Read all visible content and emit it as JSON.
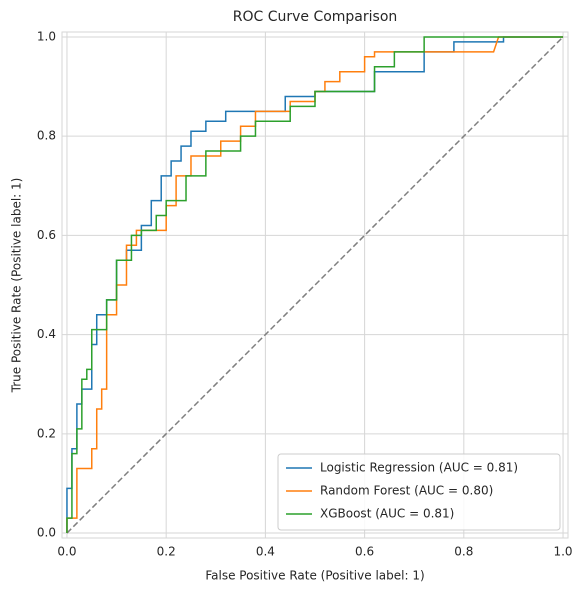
{
  "chart_data": {
    "type": "line",
    "title": "ROC Curve Comparison",
    "xlabel": "False Positive Rate (Positive label: 1)",
    "ylabel": "True Positive Rate (Positive label: 1)",
    "xlim": [
      -0.01,
      1.01
    ],
    "ylim": [
      -0.01,
      1.01
    ],
    "xticks": [
      {
        "value": 0,
        "label": "0.0"
      },
      0.2,
      0.4,
      0.6,
      0.8,
      {
        "value": 1,
        "label": "1.0"
      }
    ],
    "yticks": [
      {
        "value": 0,
        "label": "0.0"
      },
      0.2,
      0.4,
      0.6,
      0.8,
      {
        "value": 1,
        "label": "1.0"
      }
    ],
    "grid": true,
    "legend_position": "lower right",
    "reference_line": {
      "x": [
        0,
        1
      ],
      "values": [
        0,
        1
      ],
      "color": "#7f7f7f"
    },
    "series": [
      {
        "name": "Logistic Regression (AUC = 0.81)",
        "color": "#1f77b4",
        "x": [
          0,
          0,
          0.01,
          0.01,
          0.02,
          0.02,
          0.03,
          0.03,
          0.05,
          0.05,
          0.06,
          0.06,
          0.08,
          0.08,
          0.1,
          0.1,
          0.12,
          0.12,
          0.15,
          0.15,
          0.17,
          0.17,
          0.19,
          0.19,
          0.21,
          0.21,
          0.23,
          0.23,
          0.25,
          0.25,
          0.28,
          0.28,
          0.32,
          0.32,
          0.44,
          0.44,
          0.5,
          0.5,
          0.62,
          0.62,
          0.72,
          0.72,
          0.78,
          0.78,
          0.88,
          0.88,
          1.0
        ],
        "values": [
          0,
          0.09,
          0.09,
          0.17,
          0.17,
          0.26,
          0.26,
          0.29,
          0.29,
          0.38,
          0.38,
          0.44,
          0.44,
          0.47,
          0.47,
          0.55,
          0.55,
          0.57,
          0.57,
          0.62,
          0.62,
          0.67,
          0.67,
          0.72,
          0.72,
          0.75,
          0.75,
          0.78,
          0.78,
          0.81,
          0.81,
          0.83,
          0.83,
          0.85,
          0.85,
          0.88,
          0.88,
          0.89,
          0.89,
          0.93,
          0.93,
          0.97,
          0.97,
          0.99,
          0.99,
          1.0,
          1.0
        ]
      },
      {
        "name": "Random Forest (AUC = 0.80)",
        "color": "#ff7f0e",
        "x": [
          0,
          0,
          0.02,
          0.02,
          0.05,
          0.05,
          0.06,
          0.06,
          0.07,
          0.07,
          0.08,
          0.08,
          0.1,
          0.1,
          0.12,
          0.12,
          0.14,
          0.14,
          0.2,
          0.2,
          0.22,
          0.22,
          0.25,
          0.25,
          0.31,
          0.31,
          0.35,
          0.35,
          0.38,
          0.38,
          0.45,
          0.45,
          0.5,
          0.5,
          0.52,
          0.52,
          0.55,
          0.55,
          0.6,
          0.6,
          0.62,
          0.62,
          0.86,
          0.87,
          1.0
        ],
        "values": [
          0,
          0.03,
          0.03,
          0.13,
          0.13,
          0.17,
          0.17,
          0.25,
          0.25,
          0.29,
          0.29,
          0.44,
          0.44,
          0.5,
          0.5,
          0.58,
          0.58,
          0.61,
          0.61,
          0.66,
          0.66,
          0.72,
          0.72,
          0.76,
          0.76,
          0.79,
          0.79,
          0.82,
          0.82,
          0.85,
          0.85,
          0.87,
          0.87,
          0.89,
          0.89,
          0.91,
          0.91,
          0.93,
          0.93,
          0.96,
          0.96,
          0.97,
          0.97,
          1.0,
          1.0
        ]
      },
      {
        "name": "XGBoost (AUC = 0.81)",
        "color": "#2ca02c",
        "x": [
          0,
          0,
          0.01,
          0.01,
          0.02,
          0.02,
          0.03,
          0.03,
          0.04,
          0.04,
          0.05,
          0.05,
          0.08,
          0.08,
          0.1,
          0.1,
          0.13,
          0.13,
          0.15,
          0.15,
          0.18,
          0.18,
          0.2,
          0.2,
          0.24,
          0.24,
          0.28,
          0.28,
          0.35,
          0.35,
          0.38,
          0.38,
          0.45,
          0.45,
          0.5,
          0.5,
          0.62,
          0.62,
          0.66,
          0.66,
          0.72,
          0.72,
          1.0
        ],
        "values": [
          0,
          0.03,
          0.03,
          0.16,
          0.16,
          0.21,
          0.21,
          0.31,
          0.31,
          0.33,
          0.33,
          0.41,
          0.41,
          0.47,
          0.47,
          0.55,
          0.55,
          0.6,
          0.6,
          0.61,
          0.61,
          0.64,
          0.64,
          0.67,
          0.67,
          0.72,
          0.72,
          0.77,
          0.77,
          0.8,
          0.8,
          0.83,
          0.83,
          0.86,
          0.86,
          0.89,
          0.89,
          0.94,
          0.94,
          0.97,
          0.97,
          1.0,
          1.0
        ]
      }
    ]
  }
}
